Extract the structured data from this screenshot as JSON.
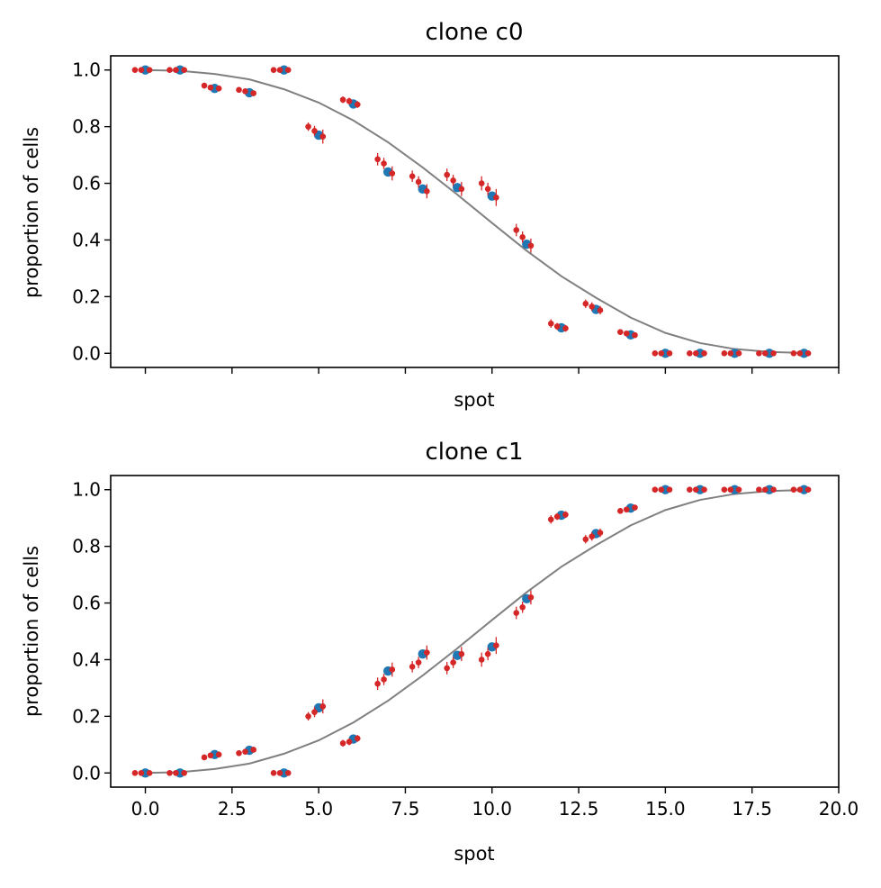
{
  "colors": {
    "observed": "#1f77b4",
    "replicate": "#d62728",
    "fit": "#808080"
  },
  "chart_data": [
    {
      "type": "scatter",
      "title": "clone c0",
      "xlabel": "spot",
      "ylabel": "proportion of cells",
      "xlim": [
        -1.0,
        20.0
      ],
      "ylim": [
        -0.05,
        1.05
      ],
      "yticks": [
        "0.0",
        "0.2",
        "0.4",
        "0.6",
        "0.8",
        "1.0"
      ],
      "xticks": [
        "0.0",
        "2.5",
        "5.0",
        "7.5",
        "10.0",
        "12.5",
        "15.0",
        "17.5",
        "20.0"
      ],
      "show_xtick_labels": false,
      "grid": false,
      "x": [
        0,
        1,
        2,
        3,
        4,
        5,
        6,
        7,
        8,
        9,
        10,
        11,
        12,
        13,
        14,
        15,
        16,
        17,
        18,
        19
      ],
      "observed": [
        1.0,
        1.0,
        0.935,
        0.92,
        1.0,
        0.77,
        0.88,
        0.64,
        0.58,
        0.585,
        0.555,
        0.385,
        0.09,
        0.155,
        0.065,
        0.0,
        0.0,
        0.0,
        0.0,
        0.0
      ],
      "replicates": [
        {
          "dx": -0.3,
          "y": [
            1.0,
            1.0,
            0.945,
            0.93,
            1.0,
            0.8,
            0.895,
            0.685,
            0.625,
            0.63,
            0.6,
            0.435,
            0.105,
            0.175,
            0.075,
            0.0,
            0.0,
            0.0,
            0.0,
            0.0
          ],
          "err": [
            0.004,
            0.004,
            0.01,
            0.01,
            0.004,
            0.015,
            0.012,
            0.022,
            0.02,
            0.022,
            0.025,
            0.022,
            0.015,
            0.015,
            0.01,
            0.004,
            0.004,
            0.004,
            0.004,
            0.004
          ]
        },
        {
          "dx": -0.12,
          "y": [
            1.0,
            1.0,
            0.938,
            0.925,
            1.0,
            0.785,
            0.89,
            0.67,
            0.605,
            0.61,
            0.58,
            0.41,
            0.095,
            0.165,
            0.07,
            0.0,
            0.0,
            0.0,
            0.0,
            0.0
          ],
          "err": [
            0.004,
            0.004,
            0.01,
            0.01,
            0.004,
            0.018,
            0.012,
            0.02,
            0.02,
            0.02,
            0.022,
            0.02,
            0.012,
            0.015,
            0.01,
            0.004,
            0.004,
            0.004,
            0.004,
            0.004
          ]
        },
        {
          "dx": 0.12,
          "y": [
            1.0,
            1.0,
            0.935,
            0.918,
            1.0,
            0.765,
            0.878,
            0.635,
            0.572,
            0.58,
            0.55,
            0.38,
            0.088,
            0.152,
            0.064,
            0.0,
            0.0,
            0.0,
            0.0,
            0.0
          ],
          "err": [
            0.004,
            0.004,
            0.01,
            0.01,
            0.004,
            0.025,
            0.012,
            0.025,
            0.025,
            0.025,
            0.03,
            0.025,
            0.012,
            0.015,
            0.01,
            0.004,
            0.004,
            0.004,
            0.004,
            0.004
          ]
        }
      ],
      "fit": {
        "x": [
          0,
          1,
          2,
          3,
          4,
          5,
          6,
          7,
          8,
          9,
          10,
          11,
          12,
          13,
          14,
          15,
          16,
          17,
          18,
          19
        ],
        "y": [
          1.0,
          0.997,
          0.986,
          0.967,
          0.932,
          0.885,
          0.822,
          0.745,
          0.656,
          0.56,
          0.46,
          0.362,
          0.272,
          0.196,
          0.126,
          0.072,
          0.036,
          0.015,
          0.005,
          0.001
        ]
      }
    },
    {
      "type": "scatter",
      "title": "clone c1",
      "xlabel": "spot",
      "ylabel": "proportion of cells",
      "xlim": [
        -1.0,
        20.0
      ],
      "ylim": [
        -0.05,
        1.05
      ],
      "yticks": [
        "0.0",
        "0.2",
        "0.4",
        "0.6",
        "0.8",
        "1.0"
      ],
      "xticks": [
        "0.0",
        "2.5",
        "5.0",
        "7.5",
        "10.0",
        "12.5",
        "15.0",
        "17.5",
        "20.0"
      ],
      "show_xtick_labels": true,
      "grid": false,
      "x": [
        0,
        1,
        2,
        3,
        4,
        5,
        6,
        7,
        8,
        9,
        10,
        11,
        12,
        13,
        14,
        15,
        16,
        17,
        18,
        19
      ],
      "observed": [
        0.0,
        0.0,
        0.065,
        0.08,
        0.0,
        0.23,
        0.12,
        0.36,
        0.42,
        0.415,
        0.445,
        0.615,
        0.91,
        0.845,
        0.935,
        1.0,
        1.0,
        1.0,
        1.0,
        1.0
      ],
      "replicates": [
        {
          "dx": -0.3,
          "y": [
            0.0,
            0.0,
            0.055,
            0.07,
            0.0,
            0.2,
            0.105,
            0.315,
            0.375,
            0.37,
            0.4,
            0.565,
            0.895,
            0.825,
            0.925,
            1.0,
            1.0,
            1.0,
            1.0,
            1.0
          ],
          "err": [
            0.004,
            0.004,
            0.01,
            0.01,
            0.004,
            0.015,
            0.012,
            0.022,
            0.02,
            0.022,
            0.025,
            0.022,
            0.015,
            0.015,
            0.01,
            0.004,
            0.004,
            0.004,
            0.004,
            0.004
          ]
        },
        {
          "dx": -0.12,
          "y": [
            0.0,
            0.0,
            0.062,
            0.075,
            0.0,
            0.215,
            0.11,
            0.33,
            0.39,
            0.39,
            0.42,
            0.585,
            0.905,
            0.835,
            0.93,
            1.0,
            1.0,
            1.0,
            1.0,
            1.0
          ],
          "err": [
            0.004,
            0.004,
            0.01,
            0.01,
            0.004,
            0.018,
            0.012,
            0.02,
            0.02,
            0.02,
            0.022,
            0.02,
            0.012,
            0.015,
            0.01,
            0.004,
            0.004,
            0.004,
            0.004,
            0.004
          ]
        },
        {
          "dx": 0.12,
          "y": [
            0.0,
            0.0,
            0.065,
            0.082,
            0.0,
            0.235,
            0.122,
            0.365,
            0.425,
            0.42,
            0.45,
            0.62,
            0.912,
            0.848,
            0.937,
            1.0,
            1.0,
            1.0,
            1.0,
            1.0
          ],
          "err": [
            0.004,
            0.004,
            0.01,
            0.01,
            0.004,
            0.025,
            0.012,
            0.025,
            0.025,
            0.025,
            0.03,
            0.025,
            0.012,
            0.015,
            0.01,
            0.004,
            0.004,
            0.004,
            0.004,
            0.004
          ]
        }
      ],
      "fit": {
        "x": [
          0,
          1,
          2,
          3,
          4,
          5,
          6,
          7,
          8,
          9,
          10,
          11,
          12,
          13,
          14,
          15,
          16,
          17,
          18,
          19
        ],
        "y": [
          0.0,
          0.003,
          0.014,
          0.033,
          0.068,
          0.115,
          0.178,
          0.255,
          0.344,
          0.44,
          0.54,
          0.638,
          0.728,
          0.804,
          0.874,
          0.928,
          0.964,
          0.985,
          0.995,
          0.999
        ]
      }
    }
  ]
}
